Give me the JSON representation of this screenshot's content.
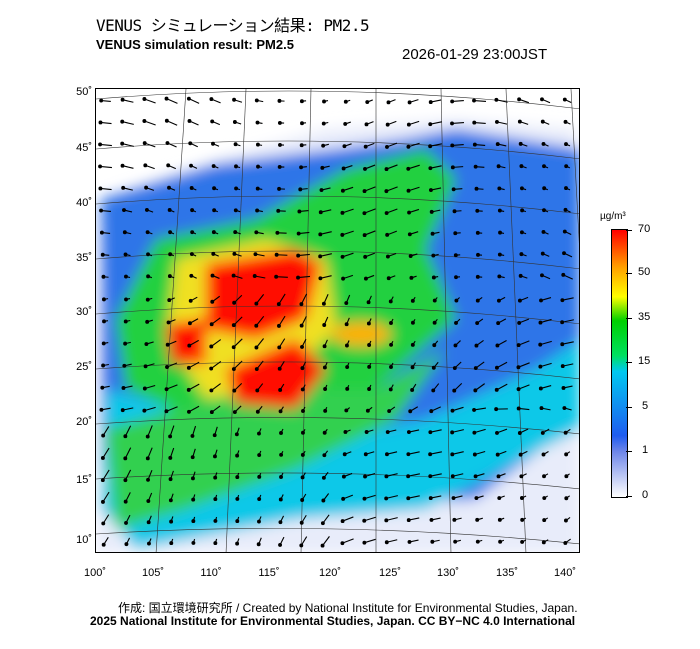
{
  "title_jp": "VENUS シミュレーション結果: PM2.5",
  "title_en": "VENUS simulation result: PM2.5",
  "timestamp": "2026-01-29 23:00JST",
  "lat_ticks": [
    "50˚",
    "45˚",
    "40˚",
    "35˚",
    "30˚",
    "25˚",
    "20˚",
    "15˚",
    "10˚"
  ],
  "lon_ticks": [
    "100˚",
    "105˚",
    "110˚",
    "115˚",
    "120˚",
    "125˚",
    "130˚",
    "135˚",
    "140˚"
  ],
  "colorbar": {
    "unit": "µg/m³",
    "labels": [
      "70",
      "50",
      "35",
      "15",
      "5",
      "1",
      "0"
    ],
    "colors": [
      "#ffffff",
      "#1f5cf0",
      "#00c8f0",
      "#00d000",
      "#ffff00",
      "#ffa000",
      "#ff0000"
    ]
  },
  "footer": {
    "credit": "作成: 国立環境研究所 / Created by National Institute for Environmental Studies, Japan.",
    "license": "2025 National Institute for Environmental Studies, Japan. CC BY−NC 4.0 International"
  }
}
